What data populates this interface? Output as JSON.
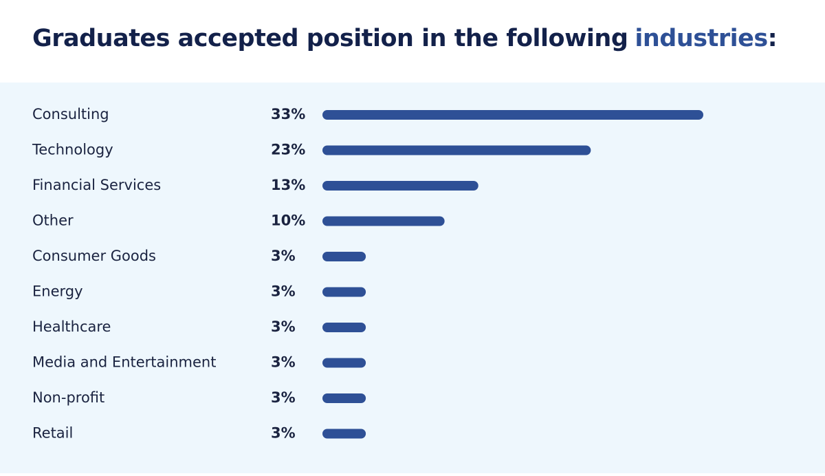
{
  "chart_data": {
    "type": "bar",
    "title": [
      "Graduates accepted position in the following",
      "industries",
      ":"
    ],
    "categories": [
      "Consulting",
      "Technology",
      "Financial Services",
      "Other",
      "Consumer Goods",
      "Energy",
      "Healthcare",
      "Media and Entertainment",
      "Non-profit",
      "Retail"
    ],
    "values": [
      33,
      23,
      13,
      10,
      3,
      3,
      3,
      3,
      3,
      3
    ],
    "value_labels": [
      "33%",
      "23%",
      "13%",
      "10%",
      "3%",
      "3%",
      "3%",
      "3%",
      "3%",
      "3%"
    ],
    "color": "#2e5096"
  }
}
